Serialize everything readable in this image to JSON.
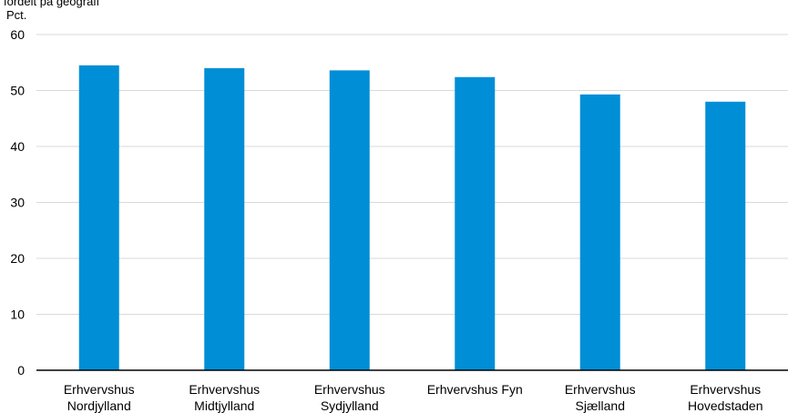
{
  "chart_data": {
    "type": "bar",
    "title": "fordelt på geografi",
    "ylabel": "Pct.",
    "categories": [
      [
        "Erhvervshus",
        "Nordjylland"
      ],
      [
        "Erhvervshus",
        "Midtjylland"
      ],
      [
        "Erhvervshus",
        "Sydjylland"
      ],
      [
        "Erhvervshus Fyn"
      ],
      [
        "Erhvervshus",
        "Sjælland"
      ],
      [
        "Erhvervshus",
        "Hovedstaden"
      ]
    ],
    "values": [
      54.5,
      54.0,
      53.6,
      52.4,
      49.3,
      48.0
    ],
    "ylim": [
      0,
      60
    ],
    "yticks": [
      "0",
      "10",
      "20",
      "30",
      "40",
      "50",
      "60"
    ],
    "grid": true,
    "bar_color": "#008ed6",
    "grid_color": "#d9d9d9",
    "axis_color": "#000000"
  }
}
